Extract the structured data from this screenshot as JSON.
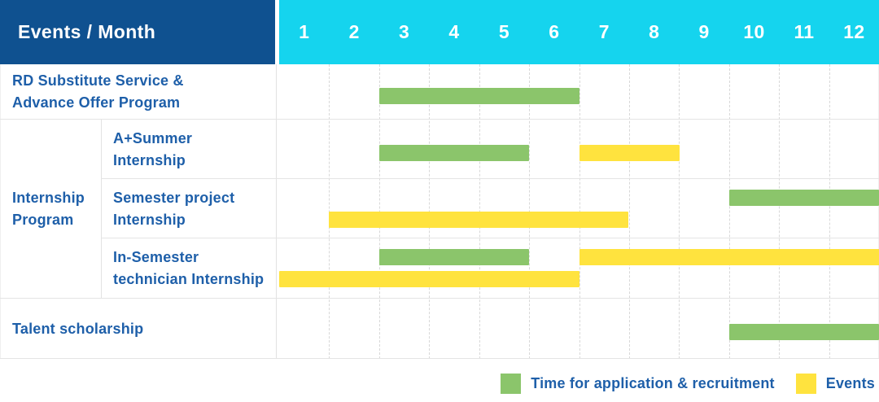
{
  "header": {
    "events_month_label": "Events / Month",
    "months": [
      "1",
      "2",
      "3",
      "4",
      "5",
      "6",
      "7",
      "8",
      "9",
      "10",
      "11",
      "12"
    ]
  },
  "colors": {
    "header_bg": "#0F5190",
    "months_bg": "#15D4EE",
    "text_blue": "#1E5FA9",
    "application_green": "#8BC56B",
    "events_yellow": "#FFE33E"
  },
  "chart_data": {
    "type": "gantt",
    "x_axis": {
      "unit": "month",
      "ticks": [
        1,
        2,
        3,
        4,
        5,
        6,
        7,
        8,
        9,
        10,
        11,
        12
      ],
      "range": [
        1,
        12
      ],
      "grid": "dashed vertical month separators"
    },
    "legend": [
      {
        "key": "application",
        "label": "Time for application & recruitment",
        "color": "#8BC56B"
      },
      {
        "key": "events",
        "label": "Events",
        "color": "#FFE33E"
      }
    ],
    "group_column": {
      "label": "Internship Program",
      "lines": [
        "Internship",
        "Program"
      ]
    },
    "rows": [
      {
        "group": null,
        "label": "RD Substitute Service & Advance Offer Program",
        "label_lines": [
          "RD Substitute Service &",
          "Advance Offer Program"
        ],
        "bars": [
          {
            "series": "application",
            "start_month": 3,
            "end_month": 6,
            "lane": "single"
          }
        ]
      },
      {
        "group": "Internship Program",
        "label": "A+Summer Internship",
        "label_lines": [
          "A+Summer",
          "Internship"
        ],
        "bars": [
          {
            "series": "application",
            "start_month": 3,
            "end_month": 5,
            "lane": "single"
          },
          {
            "series": "events",
            "start_month": 7,
            "end_month": 8,
            "lane": "single"
          }
        ]
      },
      {
        "group": "Internship Program",
        "label": "Semester project Internship",
        "label_lines": [
          "Semester project",
          "Internship"
        ],
        "bars": [
          {
            "series": "application",
            "start_month": 10,
            "end_month": 12,
            "lane": "top"
          },
          {
            "series": "events",
            "start_month": 2,
            "end_month": 7,
            "lane": "bottom"
          }
        ]
      },
      {
        "group": "Internship Program",
        "label": "In-Semester technician Internship",
        "label_lines": [
          "In-Semester",
          "technician Internship"
        ],
        "bars": [
          {
            "series": "application",
            "start_month": 3,
            "end_month": 5,
            "lane": "top"
          },
          {
            "series": "events",
            "start_month": 7,
            "end_month": 12,
            "lane": "top"
          },
          {
            "series": "events",
            "start_month": 1,
            "end_month": 6,
            "lane": "bottom"
          }
        ]
      },
      {
        "group": null,
        "label": "Talent scholarship",
        "label_lines": [
          "Talent scholarship"
        ],
        "bars": [
          {
            "series": "application",
            "start_month": 10,
            "end_month": 12,
            "lane": "single"
          }
        ]
      }
    ]
  }
}
